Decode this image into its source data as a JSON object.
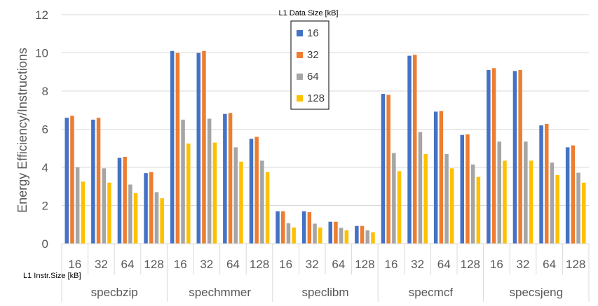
{
  "chart_data": {
    "type": "bar",
    "ylabel": "Energy Efficiency/Instructions",
    "ylim": [
      0,
      12
    ],
    "yticks": [
      "0",
      "2",
      "4",
      "6",
      "8",
      "10",
      "12"
    ],
    "grid": "horizontal",
    "legend_title": "L1 Data Size [kB]",
    "legend_position": "top-center",
    "xlabel_inner": "L1 Instr.Size [kB]",
    "groups": [
      {
        "name": "specbzip",
        "subcategories": [
          "16",
          "32",
          "64",
          "128"
        ]
      },
      {
        "name": "spechmmer",
        "subcategories": [
          "16",
          "32",
          "64",
          "128"
        ]
      },
      {
        "name": "speclibm",
        "subcategories": [
          "16",
          "32",
          "64",
          "128"
        ]
      },
      {
        "name": "specmcf",
        "subcategories": [
          "16",
          "32",
          "64",
          "128"
        ]
      },
      {
        "name": "specsjeng",
        "subcategories": [
          "16",
          "32",
          "64",
          "128"
        ]
      }
    ],
    "series": [
      {
        "name": "16",
        "color": "#4472C4",
        "values": [
          6.6,
          6.5,
          4.5,
          3.7,
          10.1,
          10.0,
          6.8,
          5.5,
          1.7,
          1.7,
          1.15,
          0.93,
          7.85,
          9.85,
          6.92,
          5.7,
          9.1,
          9.05,
          6.2,
          5.05
        ]
      },
      {
        "name": "32",
        "color": "#ED7D31",
        "values": [
          6.7,
          6.6,
          4.55,
          3.75,
          10.0,
          10.1,
          6.85,
          5.6,
          1.7,
          1.65,
          1.15,
          0.93,
          7.8,
          9.9,
          6.95,
          5.73,
          9.2,
          9.1,
          6.28,
          5.15
        ]
      },
      {
        "name": "64",
        "color": "#A5A5A5",
        "values": [
          4.0,
          3.95,
          3.1,
          2.7,
          6.5,
          6.55,
          5.05,
          4.35,
          1.07,
          1.05,
          0.83,
          0.7,
          4.75,
          5.85,
          4.7,
          4.15,
          5.35,
          5.35,
          4.25,
          3.72
        ]
      },
      {
        "name": "128",
        "color": "#FFC000",
        "values": [
          3.25,
          3.2,
          2.65,
          2.38,
          5.25,
          5.3,
          4.3,
          3.75,
          0.85,
          0.85,
          0.7,
          0.6,
          3.8,
          4.7,
          3.95,
          3.5,
          4.35,
          4.35,
          3.6,
          3.2
        ]
      }
    ]
  }
}
